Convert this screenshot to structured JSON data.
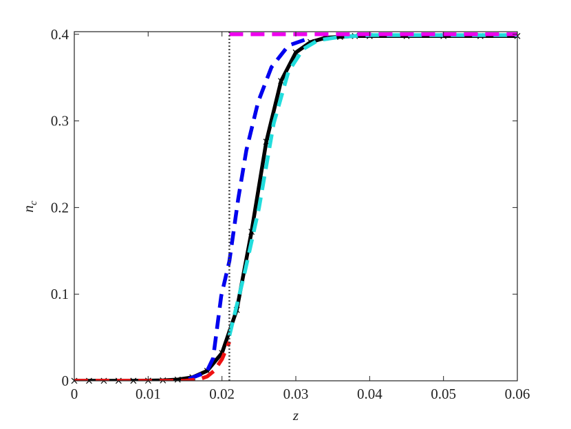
{
  "chart_data": {
    "type": "line",
    "xlabel": "z",
    "ylabel": "n",
    "ylabel_subscript": "c",
    "xlim": [
      0,
      0.06
    ],
    "ylim": [
      0,
      0.403
    ],
    "xticks": [
      0,
      0.01,
      0.02,
      0.03,
      0.04,
      0.05,
      0.06
    ],
    "yticks": [
      0,
      0.1,
      0.2,
      0.3,
      0.4
    ],
    "vline": {
      "x": 0.021,
      "color": "#444444"
    },
    "series": [
      {
        "color": "#000000",
        "dash": "solid",
        "marker": "x",
        "x": [
          0,
          0.002,
          0.004,
          0.006,
          0.008,
          0.01,
          0.012,
          0.014,
          0.016,
          0.018,
          0.02,
          0.022,
          0.024,
          0.026,
          0.028,
          0.03,
          0.032,
          0.034,
          0.036,
          0.038,
          0.04,
          0.045,
          0.05,
          0.055,
          0.06
        ],
        "values": [
          0,
          0,
          0,
          2e-05,
          5e-05,
          0.0002,
          0.0005,
          0.0014,
          0.004,
          0.0115,
          0.0321,
          0.0818,
          0.172,
          0.276,
          0.346,
          0.379,
          0.391,
          0.396,
          0.397,
          0.398,
          0.398,
          0.398,
          0.398,
          0.398,
          0.398
        ]
      },
      {
        "color": "#0000ee",
        "dash": "dashed",
        "x": [
          0.0155,
          0.0179,
          0.0188,
          0.0199,
          0.021,
          0.0222,
          0.0233,
          0.0249,
          0.0267,
          0.029,
          0.032
        ],
        "values": [
          0.002,
          0.01,
          0.026,
          0.098,
          0.138,
          0.21,
          0.266,
          0.322,
          0.362,
          0.387,
          0.396
        ]
      },
      {
        "color": "#22dddd",
        "dash": "dashed",
        "x": [
          0.021,
          0.023,
          0.025,
          0.027,
          0.029,
          0.031,
          0.033,
          0.036,
          0.04,
          0.05,
          0.06
        ],
        "values": [
          0.052,
          0.122,
          0.199,
          0.297,
          0.357,
          0.383,
          0.393,
          0.397,
          0.399,
          0.399,
          0.399
        ]
      },
      {
        "color": "#ee1111",
        "dash": "dashed",
        "x": [
          0,
          0.005,
          0.01,
          0.015,
          0.017,
          0.018,
          0.019,
          0.02,
          0.021
        ],
        "values": [
          0,
          0,
          0,
          0,
          0.002,
          0.005,
          0.012,
          0.025,
          0.045
        ]
      },
      {
        "color": "#ee00ee",
        "dash": "dashed",
        "x": [
          0.021,
          0.06
        ],
        "values": [
          0.4,
          0.4
        ]
      }
    ]
  }
}
